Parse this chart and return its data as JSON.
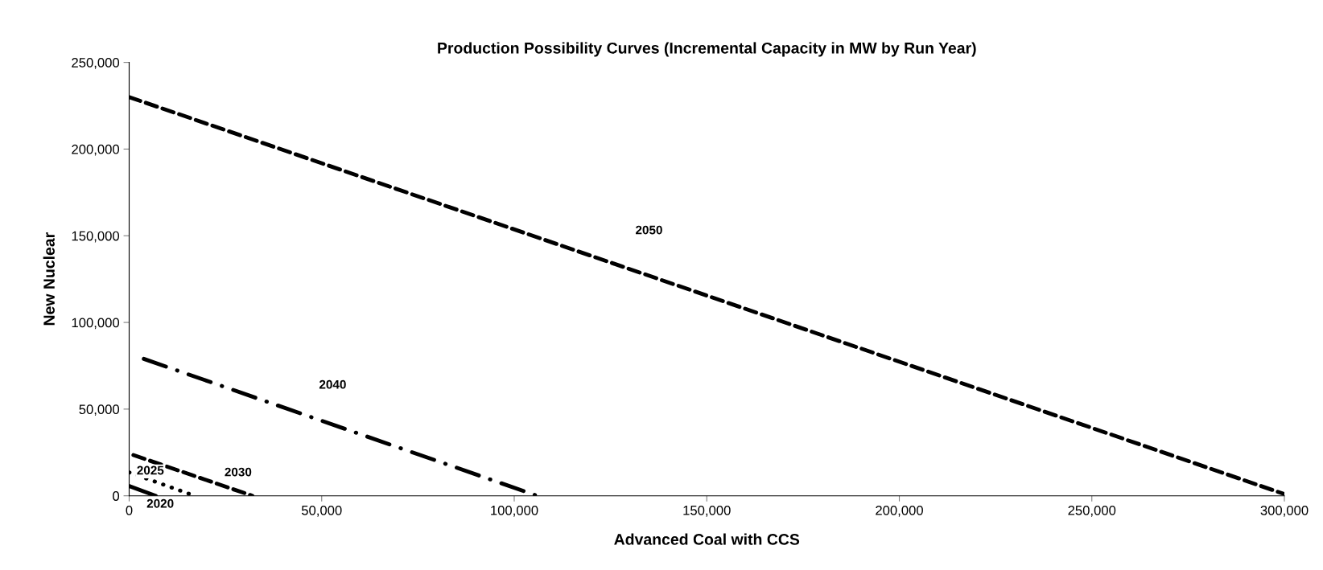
{
  "chart_data": {
    "type": "line",
    "title": "Production Possibility Curves (Incremental Capacity in MW by Run Year)",
    "xlabel": "Advanced Coal with CCS",
    "ylabel": "New Nuclear",
    "series": [
      {
        "name": "2050",
        "color": "#000000",
        "line_style": "dashed",
        "x": [
          0,
          300000
        ],
        "values": [
          230000,
          1000
        ]
      },
      {
        "name": "2040",
        "color": "#000000",
        "line_style": "dashdot",
        "x": [
          3800,
          106000
        ],
        "values": [
          79000,
          0
        ]
      },
      {
        "name": "2030",
        "color": "#000000",
        "line_style": "dashed",
        "x": [
          1100,
          32000
        ],
        "values": [
          23500,
          0
        ]
      },
      {
        "name": "2025",
        "color": "#000000",
        "line_style": "dotted",
        "x": [
          0,
          16400
        ],
        "values": [
          13500,
          500
        ]
      },
      {
        "name": "2020",
        "color": "#000000",
        "line_style": "solid",
        "x": [
          0,
          6900
        ],
        "values": [
          5600,
          0
        ]
      }
    ],
    "xlim": [
      0,
      300000
    ],
    "xticks": [
      {
        "value": 0,
        "label": "0"
      },
      {
        "value": 50000,
        "label": "50,000"
      },
      {
        "value": 100000,
        "label": "100,000"
      },
      {
        "value": 150000,
        "label": "150,000"
      },
      {
        "value": 200000,
        "label": "200,000"
      },
      {
        "value": 250000,
        "label": "250,000"
      },
      {
        "value": 300000,
        "label": "300,000"
      }
    ],
    "ylim": [
      0,
      250000
    ],
    "yticks": [
      {
        "value": 0,
        "label": "0"
      },
      {
        "value": 50000,
        "label": "50,000"
      },
      {
        "value": 100000,
        "label": "100,000"
      },
      {
        "value": 150000,
        "label": "150,000"
      },
      {
        "value": 200000,
        "label": "200,000"
      },
      {
        "value": 250000,
        "label": "250,000"
      }
    ],
    "grid": false,
    "legend": false
  }
}
